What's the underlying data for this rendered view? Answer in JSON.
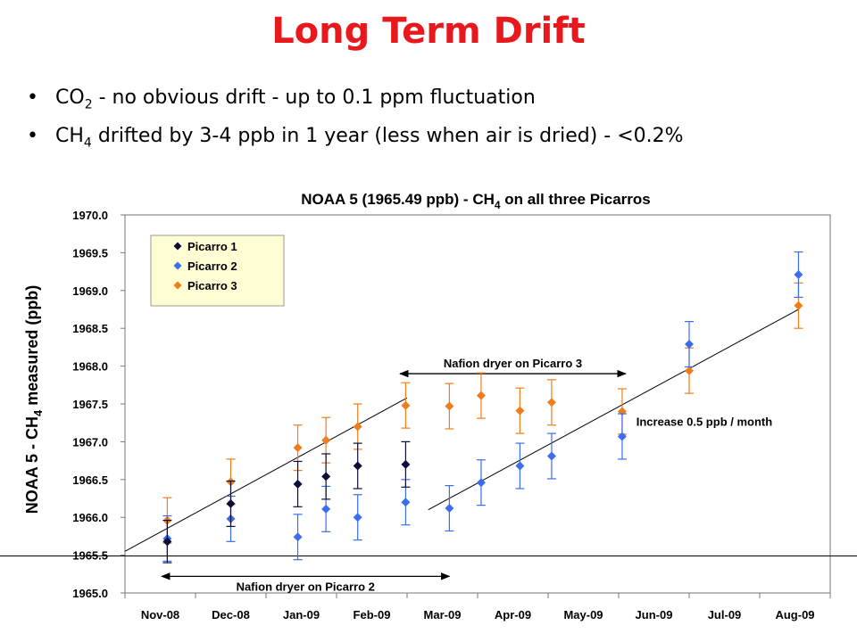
{
  "slide": {
    "title": "Long Term Drift",
    "bullets": [
      {
        "pre": "CO",
        "sub": "2",
        "post": " - no obvious drift - up to 0.1 ppm fluctuation"
      },
      {
        "pre": "CH",
        "sub": "4",
        "post": " drifted by 3-4 ppb in 1 year (less when air is dried) - <0.2%"
      }
    ]
  },
  "chart_data": {
    "type": "scatter",
    "title_pre": "NOAA 5 (1965.49 ppb) - CH",
    "title_sub": "4",
    "title_post": " on all three Picarros",
    "ylabel_pre": "NOAA 5 - CH",
    "ylabel_sub": "4",
    "ylabel_post": " measured (ppb)",
    "ylim": [
      1965.0,
      1970.0
    ],
    "yticks": [
      1965.0,
      1965.5,
      1966.0,
      1966.5,
      1967.0,
      1967.5,
      1968.0,
      1968.5,
      1969.0,
      1969.5,
      1970.0
    ],
    "ytick_labels": [
      "1965.0",
      "1965.5",
      "1966.0",
      "1966.5",
      "1967.0",
      "1967.5",
      "1968.0",
      "1968.5",
      "1969.0",
      "1969.5",
      "1970.0"
    ],
    "x_categories": [
      "Nov-08",
      "Dec-08",
      "Jan-09",
      "Feb-09",
      "Mar-09",
      "Apr-09",
      "May-09",
      "Jun-09",
      "Jul-09",
      "Aug-09"
    ],
    "xlim_months": [
      0,
      10
    ],
    "legend_position": "top-left",
    "series": [
      {
        "name": "Picarro 1",
        "color": "#0d0d3a",
        "points": [
          {
            "x": 0.6,
            "y": 1965.68,
            "err": 0.28
          },
          {
            "x": 1.5,
            "y": 1966.18,
            "err": 0.3
          },
          {
            "x": 2.45,
            "y": 1966.44,
            "err": 0.3
          },
          {
            "x": 2.85,
            "y": 1966.54,
            "err": 0.3
          },
          {
            "x": 3.3,
            "y": 1966.68,
            "err": 0.3
          },
          {
            "x": 3.98,
            "y": 1966.7,
            "err": 0.3
          }
        ]
      },
      {
        "name": "Picarro 2",
        "color": "#3c6cf0",
        "points": [
          {
            "x": 0.6,
            "y": 1965.72,
            "err": 0.3
          },
          {
            "x": 1.5,
            "y": 1965.98,
            "err": 0.3
          },
          {
            "x": 2.45,
            "y": 1965.74,
            "err": 0.3
          },
          {
            "x": 2.85,
            "y": 1966.11,
            "err": 0.3
          },
          {
            "x": 3.3,
            "y": 1966.0,
            "err": 0.3
          },
          {
            "x": 3.98,
            "y": 1966.2,
            "err": 0.3
          },
          {
            "x": 4.6,
            "y": 1966.12,
            "err": 0.3
          },
          {
            "x": 5.05,
            "y": 1966.46,
            "err": 0.3
          },
          {
            "x": 5.6,
            "y": 1966.68,
            "err": 0.3
          },
          {
            "x": 6.05,
            "y": 1966.81,
            "err": 0.3
          },
          {
            "x": 7.05,
            "y": 1967.07,
            "err": 0.3
          },
          {
            "x": 8.0,
            "y": 1968.29,
            "err": 0.3
          },
          {
            "x": 9.55,
            "y": 1969.21,
            "err": 0.3
          }
        ]
      },
      {
        "name": "Picarro 3",
        "color": "#f07d1c",
        "points": [
          {
            "x": 0.6,
            "y": 1965.96,
            "err": 0.3
          },
          {
            "x": 1.5,
            "y": 1966.47,
            "err": 0.3
          },
          {
            "x": 2.45,
            "y": 1966.92,
            "err": 0.3
          },
          {
            "x": 2.85,
            "y": 1967.02,
            "err": 0.3
          },
          {
            "x": 3.3,
            "y": 1967.2,
            "err": 0.3
          },
          {
            "x": 3.98,
            "y": 1967.48,
            "err": 0.3
          },
          {
            "x": 4.6,
            "y": 1967.47,
            "err": 0.3
          },
          {
            "x": 5.05,
            "y": 1967.61,
            "err": 0.3
          },
          {
            "x": 5.6,
            "y": 1967.41,
            "err": 0.3
          },
          {
            "x": 6.05,
            "y": 1967.52,
            "err": 0.3
          },
          {
            "x": 7.05,
            "y": 1967.4,
            "err": 0.3
          },
          {
            "x": 8.0,
            "y": 1967.94,
            "err": 0.3
          },
          {
            "x": 9.55,
            "y": 1968.8,
            "err": 0.3
          }
        ]
      }
    ],
    "trend_lines": [
      {
        "x0": 0,
        "y0": 1965.55,
        "x1": 4.0,
        "y1": 1967.58
      },
      {
        "x0": 4.3,
        "y0": 1966.1,
        "x1": 9.55,
        "y1": 1968.75
      }
    ],
    "reference_line": {
      "y": 1965.49
    },
    "annotations": [
      {
        "text": "Nafion dryer on Picarro 3",
        "x_from": 3.9,
        "x_to": 7.1,
        "y": 1967.9,
        "arrow": "both"
      },
      {
        "text": "Nafion dryer on Picarro 2",
        "x_from": 0.52,
        "x_to": 4.6,
        "y": 1965.22,
        "arrow": "both"
      },
      {
        "text": "Increase 0.5 ppb / month",
        "x": 7.25,
        "y": 1967.21
      }
    ]
  }
}
